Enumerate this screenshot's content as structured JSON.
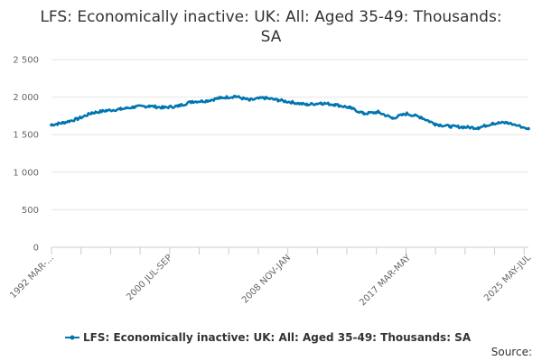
{
  "chart_data": {
    "type": "line",
    "title_line1": "LFS: Economically inactive: UK: All: Aged 35-49: Thousands:",
    "title_line2": "SA",
    "xlabel": "",
    "ylabel": "",
    "ylim": [
      0,
      2500
    ],
    "y_ticks": [
      "0",
      "500",
      "1 000",
      "1 500",
      "2 000",
      "2 500"
    ],
    "x_tick_labels": [
      "1992 MAR-...",
      "2000 JUL-SEP",
      "2008 NOV-JAN",
      "2017 MAR-MAY",
      "2025 MAY-JUL"
    ],
    "grid": true,
    "legend_position": "bottom",
    "series_color": "#0075b0",
    "series": [
      {
        "name": "LFS: Economically inactive: UK: All: Aged 35-49: Thousands: SA",
        "x": [
          1992.17,
          1993,
          1994,
          1995,
          1996,
          1997,
          1998,
          1999,
          2000,
          2001,
          2002,
          2003,
          2004,
          2005,
          2006,
          2007,
          2008,
          2009,
          2010,
          2011,
          2012,
          2013,
          2014,
          2015,
          2016,
          2017,
          2018,
          2019,
          2020,
          2021,
          2022,
          2023,
          2024,
          2025.5
        ],
        "values": [
          1630,
          1660,
          1710,
          1790,
          1820,
          1840,
          1870,
          1880,
          1860,
          1880,
          1940,
          1950,
          1990,
          2010,
          1960,
          1990,
          1960,
          1930,
          1900,
          1920,
          1900,
          1860,
          1780,
          1800,
          1720,
          1780,
          1730,
          1640,
          1610,
          1600,
          1590,
          1650,
          1660,
          1580
        ]
      }
    ]
  },
  "legend_label": "LFS: Economically inactive: UK: All: Aged 35-49: Thousands: SA",
  "source_label": "Source:"
}
